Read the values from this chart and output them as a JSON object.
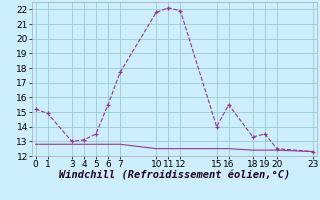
{
  "x": [
    0,
    1,
    3,
    4,
    5,
    6,
    7,
    10,
    11,
    12,
    15,
    16,
    18,
    19,
    20,
    23
  ],
  "y": [
    15.2,
    14.9,
    13.0,
    13.1,
    13.5,
    15.5,
    17.7,
    21.8,
    22.1,
    21.9,
    14.0,
    15.5,
    13.3,
    13.5,
    12.5,
    12.3
  ],
  "y_flat": [
    12.8,
    12.8,
    12.8,
    12.8,
    12.8,
    12.8,
    12.8,
    12.5,
    12.5,
    12.5,
    12.5,
    12.5,
    12.4,
    12.4,
    12.4,
    12.3
  ],
  "line_color": "#993399",
  "flat_color": "#993399",
  "bg_color": "#cceeff",
  "grid_color": "#99cccc",
  "xlabel": "Windchill (Refroidissement éolien,°C)",
  "ylim": [
    12,
    22.5
  ],
  "xlim": [
    -0.3,
    23.3
  ],
  "yticks": [
    12,
    13,
    14,
    15,
    16,
    17,
    18,
    19,
    20,
    21,
    22
  ],
  "xticks": [
    0,
    1,
    3,
    4,
    5,
    6,
    7,
    10,
    11,
    12,
    15,
    16,
    18,
    19,
    20,
    23
  ],
  "xlabel_fontsize": 7.5,
  "tick_fontsize": 6.5
}
